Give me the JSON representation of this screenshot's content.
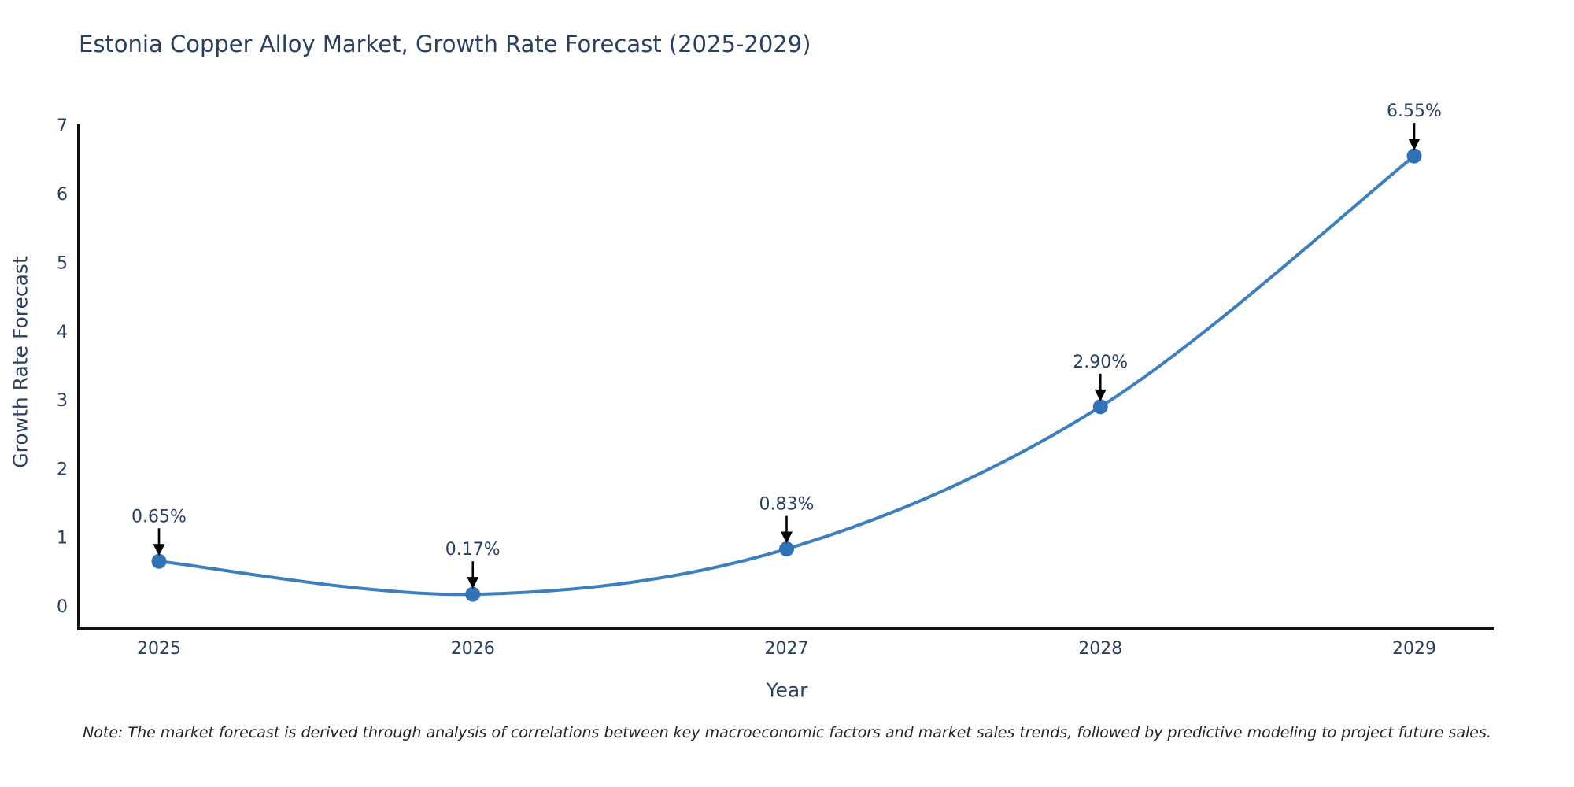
{
  "figure": {
    "title": "Estonia Copper Alloy Market, Growth Rate Forecast (2025-2029)",
    "note": "Note: The market forecast is derived through analysis of correlations between key macroeconomic factors and market sales trends, followed by predictive modeling to project future sales."
  },
  "chart_data": {
    "type": "line",
    "title": "Estonia Copper Alloy Market, Growth Rate Forecast (2025-2029)",
    "xlabel": "Year",
    "ylabel": "Growth Rate Forecast",
    "x": [
      2025,
      2026,
      2027,
      2028,
      2029
    ],
    "series": [
      {
        "name": "Growth Rate Forecast",
        "values": [
          0.65,
          0.17,
          0.83,
          2.9,
          6.55
        ]
      }
    ],
    "point_labels": [
      "0.65%",
      "0.17%",
      "0.83%",
      "2.90%",
      "6.55%"
    ],
    "ylim": [
      0,
      7
    ],
    "yticks": [
      0,
      1,
      2,
      3,
      4,
      5,
      6,
      7
    ],
    "grid": false,
    "legend": false,
    "line_shape": "spline",
    "marker": "circle",
    "annotations": "value labels with downward black arrows above each point",
    "colors": {
      "line": "#3c7ebe",
      "marker": "#3171b5",
      "axis": "#111111",
      "text": "#2a3f5f",
      "arrow": "#000000",
      "background": "#ffffff"
    }
  }
}
